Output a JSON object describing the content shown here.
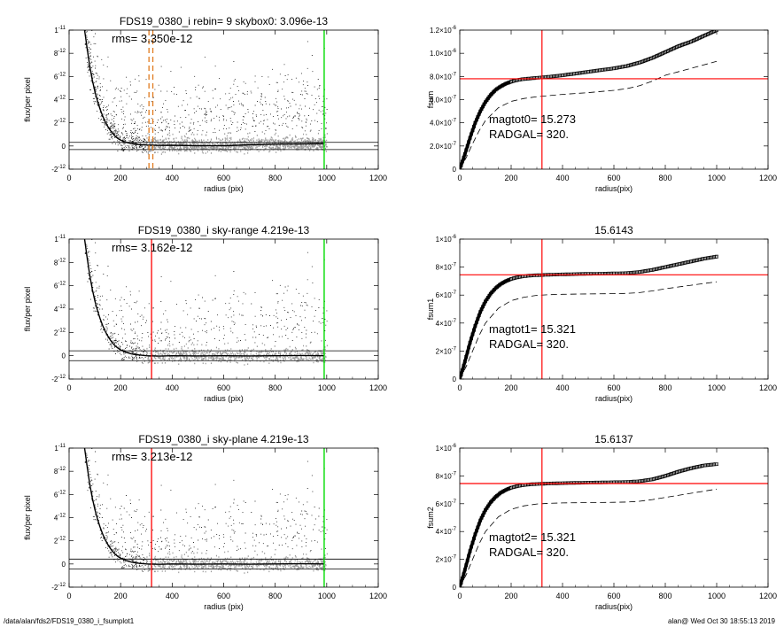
{
  "footer": {
    "left": "/data/alan/fds2/FDS19_0380_i_fsumplot1",
    "right": "alan@  Wed Oct 30 18:55:13 2019"
  },
  "colors": {
    "scatter_dark": "#000000",
    "scatter_light": "#9a9a9a",
    "sky_marker": "#ff0000",
    "sky_marker_dashed": "#e07b1f",
    "outer_limit": "#00dd00",
    "fsum_line": "#ff0000"
  },
  "chart_data": [
    {
      "type": "scatter",
      "title": "FDS19_0380_i rebin= 9    skybox0:  3.096e-13",
      "annotation": "rms= 3.350e-12",
      "xlabel": "radius (pix)",
      "ylabel": "flux/per pixel",
      "xlim": [
        0,
        1200
      ],
      "ylim": [
        -2e-12,
        1e-11
      ],
      "xticks": [
        "0",
        "200",
        "400",
        "600",
        "800",
        "1000",
        "1200"
      ],
      "yticks": [
        {
          "v": -2e-12,
          "m": "-2",
          "e": "-12"
        },
        {
          "v": 0,
          "m": "0",
          "e": ""
        },
        {
          "v": 2e-12,
          "m": "2",
          "e": "-12"
        },
        {
          "v": 4e-12,
          "m": "4",
          "e": "-12"
        },
        {
          "v": 6e-12,
          "m": "6",
          "e": "-12"
        },
        {
          "v": 8e-12,
          "m": "8",
          "e": "-12"
        },
        {
          "v": 1e-11,
          "m": "1",
          "e": "-11"
        }
      ],
      "profile": {
        "x": [
          60,
          70,
          80,
          90,
          100,
          110,
          120,
          130,
          140,
          150,
          160,
          170,
          180,
          190,
          200,
          220,
          240,
          260,
          280,
          300,
          350,
          400,
          500,
          600,
          700,
          800,
          900,
          990
        ],
        "y": [
          1e-11,
          8.4e-12,
          6.9e-12,
          5.7e-12,
          4.7e-12,
          3.9e-12,
          3.2e-12,
          2.6e-12,
          2.1e-12,
          1.7e-12,
          1.35e-12,
          1.05e-12,
          8.2e-13,
          6.4e-13,
          5e-13,
          3.2e-13,
          2.1e-13,
          1.5e-13,
          1.1e-13,
          8e-14,
          5e-14,
          6e-14,
          2e-14,
          2e-14,
          1e-13,
          1.6e-13,
          1.8e-13,
          2e-13
        ]
      },
      "hlines": [
        3.096e-13,
        -3.096e-13
      ],
      "sky_markers": [
        310,
        325
      ],
      "sky_marker_style": "dashed",
      "outer_limit": 990
    },
    {
      "type": "line",
      "title": "",
      "xlabel": "radius(pix)",
      "ylabel": "fsum",
      "xlim": [
        0,
        1200
      ],
      "ylim": [
        0,
        1.2e-06
      ],
      "xticks": [
        "0",
        "200",
        "400",
        "600",
        "800",
        "1000",
        "1200"
      ],
      "yticks": [
        {
          "v": 0,
          "m": "0",
          "e": ""
        },
        {
          "v": 2e-07,
          "m": "2.0×10",
          "e": "-7"
        },
        {
          "v": 4e-07,
          "m": "4.0×10",
          "e": "-7"
        },
        {
          "v": 6e-07,
          "m": "6.0×10",
          "e": "-7"
        },
        {
          "v": 8e-07,
          "m": "8.0×10",
          "e": "-7"
        },
        {
          "v": 1e-06,
          "m": "1.0×10",
          "e": "-6"
        },
        {
          "v": 1.2e-06,
          "m": "1.2×10",
          "e": "-6"
        }
      ],
      "annotations": [
        "magtot0=  15.273",
        "RADGAL=    320."
      ],
      "series": [
        {
          "style": "boxes",
          "x": [
            0,
            20,
            40,
            60,
            80,
            100,
            120,
            140,
            160,
            180,
            200,
            220,
            240,
            260,
            280,
            300,
            320,
            340,
            360,
            380,
            400,
            450,
            500,
            550,
            600,
            650,
            700,
            750,
            800,
            850,
            900,
            950,
            1000
          ],
          "y": [
            0,
            1.3e-07,
            2.7e-07,
            4e-07,
            5e-07,
            5.8e-07,
            6.4e-07,
            6.85e-07,
            7.15e-07,
            7.38e-07,
            7.55e-07,
            7.67e-07,
            7.75e-07,
            7.8e-07,
            7.84e-07,
            7.88e-07,
            7.92e-07,
            7.96e-07,
            8e-07,
            8.05e-07,
            8.1e-07,
            8.25e-07,
            8.4e-07,
            8.55e-07,
            8.7e-07,
            8.9e-07,
            9.2e-07,
            9.6e-07,
            1.01e-06,
            1.06e-06,
            1.1e-06,
            1.15e-06,
            1.2e-06
          ]
        },
        {
          "style": "dashed",
          "x": [
            0,
            25,
            50,
            75,
            100,
            150,
            200,
            250,
            300,
            350,
            400,
            500,
            600,
            650,
            700,
            750,
            800,
            900,
            1000
          ],
          "y": [
            0,
            1e-07,
            2.2e-07,
            3.3e-07,
            4.2e-07,
            5.3e-07,
            5.85e-07,
            6.1e-07,
            6.25e-07,
            6.35e-07,
            6.45e-07,
            6.6e-07,
            6.8e-07,
            6.95e-07,
            7.2e-07,
            7.6e-07,
            8.1e-07,
            8.7e-07,
            9.3e-07
          ]
        }
      ],
      "hline": 7.8e-07,
      "vline": 320
    },
    {
      "type": "scatter",
      "title": "FDS19_0380_i sky-range  4.219e-13",
      "annotation": "rms= 3.162e-12",
      "xlabel": "radius (pix)",
      "ylabel": "flux/per pixel",
      "xlim": [
        0,
        1200
      ],
      "ylim": [
        -2e-12,
        1e-11
      ],
      "xticks": [
        "0",
        "200",
        "400",
        "600",
        "800",
        "1000",
        "1200"
      ],
      "yticks": [
        {
          "v": -2e-12,
          "m": "-2",
          "e": "-12"
        },
        {
          "v": 0,
          "m": "0",
          "e": ""
        },
        {
          "v": 2e-12,
          "m": "2",
          "e": "-12"
        },
        {
          "v": 4e-12,
          "m": "4",
          "e": "-12"
        },
        {
          "v": 6e-12,
          "m": "6",
          "e": "-12"
        },
        {
          "v": 8e-12,
          "m": "8",
          "e": "-12"
        },
        {
          "v": 1e-11,
          "m": "1",
          "e": "-11"
        }
      ],
      "profile": {
        "x": [
          60,
          70,
          80,
          90,
          100,
          110,
          120,
          130,
          140,
          150,
          160,
          170,
          180,
          190,
          200,
          220,
          240,
          260,
          280,
          300,
          350,
          400,
          500,
          600,
          700,
          800,
          900,
          990
        ],
        "y": [
          1e-11,
          8.4e-12,
          6.9e-12,
          5.7e-12,
          4.7e-12,
          3.9e-12,
          3.2e-12,
          2.6e-12,
          2.1e-12,
          1.7e-12,
          1.35e-12,
          1.05e-12,
          8.2e-13,
          6.4e-13,
          5e-13,
          3e-13,
          1.7e-13,
          9e-14,
          4e-14,
          0,
          -3e-14,
          0,
          -2e-14,
          0,
          -2e-14,
          0,
          2e-14,
          0
        ]
      },
      "hlines": [
        4.219e-13,
        -4.219e-13
      ],
      "sky_markers": [
        320
      ],
      "sky_marker_style": "solid",
      "outer_limit": 990
    },
    {
      "type": "line",
      "title": "15.6143",
      "xlabel": "radius(pix)",
      "ylabel": "fsum1",
      "xlim": [
        0,
        1200
      ],
      "ylim": [
        0,
        1e-06
      ],
      "xticks": [
        "0",
        "200",
        "400",
        "600",
        "800",
        "1000",
        "1200"
      ],
      "yticks": [
        {
          "v": 0,
          "m": "0",
          "e": ""
        },
        {
          "v": 2e-07,
          "m": "2×10",
          "e": "-7"
        },
        {
          "v": 4e-07,
          "m": "4×10",
          "e": "-7"
        },
        {
          "v": 6e-07,
          "m": "6×10",
          "e": "-7"
        },
        {
          "v": 8e-07,
          "m": "8×10",
          "e": "-7"
        },
        {
          "v": 1e-06,
          "m": "1×10",
          "e": "-6"
        }
      ],
      "annotations": [
        "magtot1=  15.321",
        "RADGAL=    320."
      ],
      "series": [
        {
          "style": "boxes",
          "x": [
            0,
            20,
            40,
            60,
            80,
            100,
            120,
            140,
            160,
            180,
            200,
            220,
            240,
            260,
            280,
            300,
            320,
            340,
            360,
            380,
            400,
            450,
            500,
            550,
            600,
            650,
            700,
            750,
            800,
            850,
            900,
            950,
            1000
          ],
          "y": [
            0,
            1.25e-07,
            2.6e-07,
            3.8e-07,
            4.8e-07,
            5.55e-07,
            6.1e-07,
            6.5e-07,
            6.8e-07,
            7e-07,
            7.15e-07,
            7.25e-07,
            7.32e-07,
            7.37e-07,
            7.4e-07,
            7.42e-07,
            7.43e-07,
            7.45e-07,
            7.46e-07,
            7.47e-07,
            7.48e-07,
            7.5e-07,
            7.52e-07,
            7.53e-07,
            7.55e-07,
            7.57e-07,
            7.65e-07,
            7.8e-07,
            8e-07,
            8.2e-07,
            8.4e-07,
            8.6e-07,
            8.75e-07
          ]
        },
        {
          "style": "dashed",
          "x": [
            0,
            25,
            50,
            75,
            100,
            150,
            200,
            250,
            300,
            350,
            400,
            500,
            600,
            650,
            700,
            750,
            800,
            900,
            1000
          ],
          "y": [
            0,
            9e-08,
            2e-07,
            3.1e-07,
            4e-07,
            5.05e-07,
            5.6e-07,
            5.85e-07,
            5.98e-07,
            6.03e-07,
            6.06e-07,
            6.08e-07,
            6.1e-07,
            6.12e-07,
            6.18e-07,
            6.3e-07,
            6.45e-07,
            6.7e-07,
            6.95e-07
          ]
        }
      ],
      "hline": 7.45e-07,
      "vline": 320
    },
    {
      "type": "scatter",
      "title": "FDS19_0380_i sky-plane  4.219e-13",
      "annotation": "rms= 3.213e-12",
      "xlabel": "radius (pix)",
      "ylabel": "flux/per pixel",
      "xlim": [
        0,
        1200
      ],
      "ylim": [
        -2e-12,
        1e-11
      ],
      "xticks": [
        "0",
        "200",
        "400",
        "600",
        "800",
        "1000",
        "1200"
      ],
      "yticks": [
        {
          "v": -2e-12,
          "m": "-2",
          "e": "-12"
        },
        {
          "v": 0,
          "m": "0",
          "e": ""
        },
        {
          "v": 2e-12,
          "m": "2",
          "e": "-12"
        },
        {
          "v": 4e-12,
          "m": "4",
          "e": "-12"
        },
        {
          "v": 6e-12,
          "m": "6",
          "e": "-12"
        },
        {
          "v": 8e-12,
          "m": "8",
          "e": "-12"
        },
        {
          "v": 1e-11,
          "m": "1",
          "e": "-11"
        }
      ],
      "profile": {
        "x": [
          60,
          70,
          80,
          90,
          100,
          110,
          120,
          130,
          140,
          150,
          160,
          170,
          180,
          190,
          200,
          220,
          240,
          260,
          280,
          300,
          350,
          400,
          500,
          600,
          700,
          800,
          900,
          990
        ],
        "y": [
          1e-11,
          8.4e-12,
          6.9e-12,
          5.7e-12,
          4.7e-12,
          3.9e-12,
          3.2e-12,
          2.6e-12,
          2.1e-12,
          1.7e-12,
          1.35e-12,
          1.05e-12,
          8.2e-13,
          6.4e-13,
          5e-13,
          3e-13,
          1.7e-13,
          9e-14,
          4e-14,
          0,
          -3e-14,
          0,
          -2e-14,
          0,
          -2e-14,
          0,
          2e-14,
          0
        ]
      },
      "hlines": [
        4.219e-13,
        -4.219e-13
      ],
      "sky_markers": [
        320
      ],
      "sky_marker_style": "solid",
      "outer_limit": 990
    },
    {
      "type": "line",
      "title": "15.6137",
      "xlabel": "radius(pix)",
      "ylabel": "fsum2",
      "xlim": [
        0,
        1200
      ],
      "ylim": [
        0,
        1e-06
      ],
      "xticks": [
        "0",
        "200",
        "400",
        "600",
        "800",
        "1000",
        "1200"
      ],
      "yticks": [
        {
          "v": 0,
          "m": "0",
          "e": ""
        },
        {
          "v": 2e-07,
          "m": "2×10",
          "e": "-7"
        },
        {
          "v": 4e-07,
          "m": "4×10",
          "e": "-7"
        },
        {
          "v": 6e-07,
          "m": "6×10",
          "e": "-7"
        },
        {
          "v": 8e-07,
          "m": "8×10",
          "e": "-7"
        },
        {
          "v": 1e-06,
          "m": "1×10",
          "e": "-6"
        }
      ],
      "annotations": [
        "magtot2=  15.321",
        "RADGAL=    320."
      ],
      "series": [
        {
          "style": "boxes",
          "x": [
            0,
            20,
            40,
            60,
            80,
            100,
            120,
            140,
            160,
            180,
            200,
            220,
            240,
            260,
            280,
            300,
            320,
            340,
            360,
            380,
            400,
            450,
            500,
            550,
            600,
            650,
            700,
            750,
            800,
            850,
            900,
            950,
            1000
          ],
          "y": [
            0,
            1.25e-07,
            2.6e-07,
            3.8e-07,
            4.8e-07,
            5.55e-07,
            6.1e-07,
            6.5e-07,
            6.8e-07,
            7e-07,
            7.15e-07,
            7.25e-07,
            7.32e-07,
            7.37e-07,
            7.4e-07,
            7.42e-07,
            7.43e-07,
            7.45e-07,
            7.46e-07,
            7.47e-07,
            7.48e-07,
            7.5e-07,
            7.52e-07,
            7.53e-07,
            7.55e-07,
            7.56e-07,
            7.62e-07,
            7.75e-07,
            8e-07,
            8.3e-07,
            8.55e-07,
            8.75e-07,
            8.85e-07
          ]
        },
        {
          "style": "dashed",
          "x": [
            0,
            25,
            50,
            75,
            100,
            150,
            200,
            250,
            300,
            350,
            400,
            500,
            600,
            650,
            700,
            750,
            800,
            900,
            1000
          ],
          "y": [
            0,
            9e-08,
            2e-07,
            3.1e-07,
            4e-07,
            5.05e-07,
            5.6e-07,
            5.85e-07,
            5.98e-07,
            6.03e-07,
            6.06e-07,
            6.08e-07,
            6.1e-07,
            6.12e-07,
            6.18e-07,
            6.3e-07,
            6.45e-07,
            6.75e-07,
            7.05e-07
          ]
        }
      ],
      "hline": 7.45e-07,
      "vline": 320
    }
  ]
}
